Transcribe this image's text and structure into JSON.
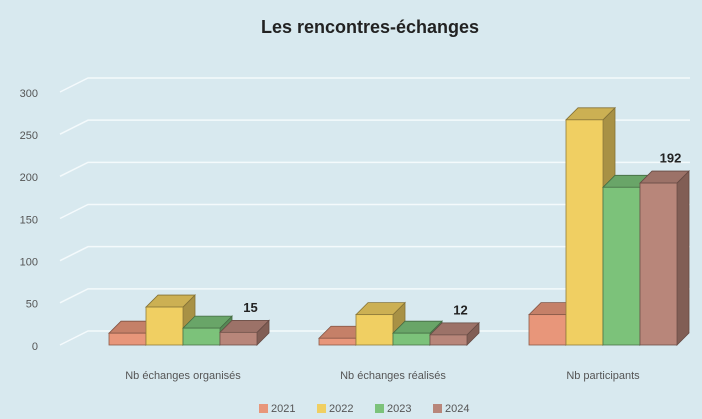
{
  "chart_data": {
    "type": "bar3d",
    "title": "Les rencontres-échanges",
    "categories": [
      "Nb échanges organisés",
      "Nb échanges réalisés",
      "Nb participants"
    ],
    "series": [
      {
        "name": "2021",
        "color": "#e8967a",
        "values": [
          14,
          8,
          36
        ]
      },
      {
        "name": "2022",
        "color": "#f0cf62",
        "values": [
          45,
          36,
          267
        ]
      },
      {
        "name": "2023",
        "color": "#7cc27a",
        "values": [
          20,
          14,
          187
        ]
      },
      {
        "name": "2024",
        "color": "#b8867a",
        "values": [
          15,
          12,
          192
        ],
        "show_labels": true
      }
    ],
    "ylim": [
      0,
      300
    ],
    "yticks": [
      0,
      50,
      100,
      150,
      200,
      250,
      300
    ],
    "grid": true,
    "legend": "bottom"
  }
}
